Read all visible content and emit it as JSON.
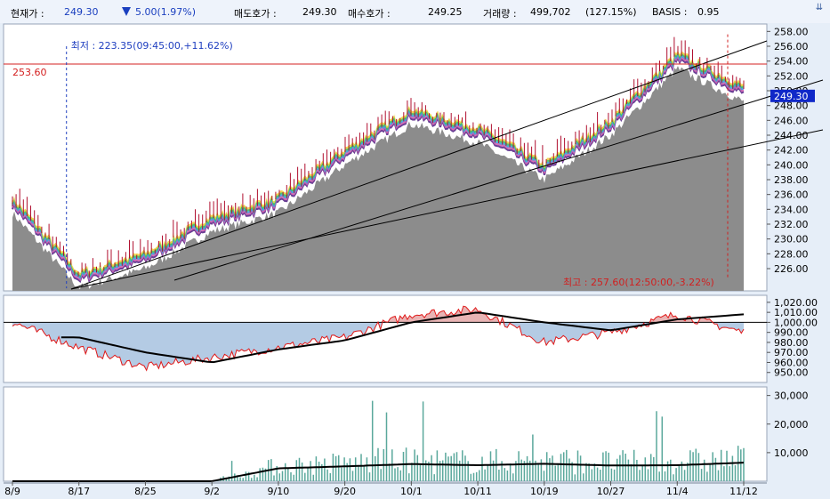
{
  "header": {
    "current_label": "현재가 :",
    "current_price": "249.30",
    "change": "5.00(1.97%)",
    "ask_label": "매도호가 :",
    "ask_price": "249.30",
    "bid_label": "매수호가 :",
    "bid_price": "249.25",
    "volume_label": "거래량 :",
    "volume": "499,702",
    "volume_pct": "(127.15%)",
    "basis_label": "BASIS :",
    "basis": "0.95"
  },
  "colors": {
    "price_fill": "#8c8c8c",
    "ref_line": "#d42020",
    "osc_pos_fill": "#e8b4b4",
    "osc_neg_fill": "#b4cbe4",
    "volume_bar": "#5aa89c",
    "current_tag": "#1028c8"
  },
  "chart_data": [
    {
      "type": "area",
      "panel": "price",
      "x": [
        "8/9",
        "8/17",
        "8/25",
        "9/2",
        "9/10",
        "9/20",
        "10/1",
        "10/11",
        "10/19",
        "10/27",
        "11/4",
        "11/12"
      ],
      "series": [
        {
          "values": [
            233.5,
            223.4,
            226.0,
            231.0,
            233.5,
            240.0,
            245.5,
            243.0,
            238.0,
            244.0,
            253.0,
            248.5
          ]
        }
      ],
      "ylim": [
        223,
        259
      ],
      "yticks": [
        "226.00",
        "228.00",
        "230.00",
        "232.00",
        "234.00",
        "236.00",
        "238.00",
        "240.00",
        "242.00",
        "244.00",
        "246.00",
        "248.00",
        "250.00",
        "252.00",
        "254.00",
        "256.00",
        "258.00"
      ],
      "reference_line": {
        "value": 253.6,
        "label": "253.60"
      },
      "current_price_tag": "249.30",
      "annotations": {
        "low": {
          "text": "최저 : 223.35(09:45:00,+11.62%)",
          "x": "8/17",
          "value": 223.35
        },
        "high": {
          "text": "최고 : 257.60(12:50:00,-3.22%)",
          "x": "11/12",
          "value": 257.6
        }
      }
    },
    {
      "type": "line",
      "panel": "oscillator",
      "x": [
        "8/9",
        "8/17",
        "8/25",
        "9/2",
        "9/10",
        "9/20",
        "10/1",
        "10/11",
        "10/19",
        "10/27",
        "11/4",
        "11/12"
      ],
      "series": [
        {
          "values": [
            1000,
            975,
            955,
            965,
            975,
            985,
            1008,
            1013,
            980,
            990,
            1008,
            990
          ]
        },
        {
          "values": [
            null,
            985,
            970,
            960,
            973,
            982,
            1000,
            1010,
            1000,
            992,
            1003,
            1008
          ]
        }
      ],
      "ylim": [
        940,
        1027
      ],
      "reference_line": {
        "value": 1000
      },
      "yticks": [
        "950.00",
        "960.00",
        "970.00",
        "980.00",
        "990.00",
        "1,000.00",
        "1,010.00",
        "1,020.00"
      ]
    },
    {
      "type": "bar",
      "panel": "volume",
      "x": [
        "8/9",
        "8/17",
        "8/25",
        "9/2",
        "9/10",
        "9/20",
        "10/1",
        "10/11",
        "10/19",
        "10/27",
        "11/4",
        "11/12"
      ],
      "series": [
        {
          "values": [
            0,
            0,
            0,
            0,
            4500,
            5200,
            6000,
            5600,
            6100,
            5500,
            5600,
            6500
          ]
        }
      ],
      "ylim": [
        0,
        33000
      ],
      "yticks": [
        "10,000",
        "20,000",
        "30,000"
      ]
    }
  ]
}
